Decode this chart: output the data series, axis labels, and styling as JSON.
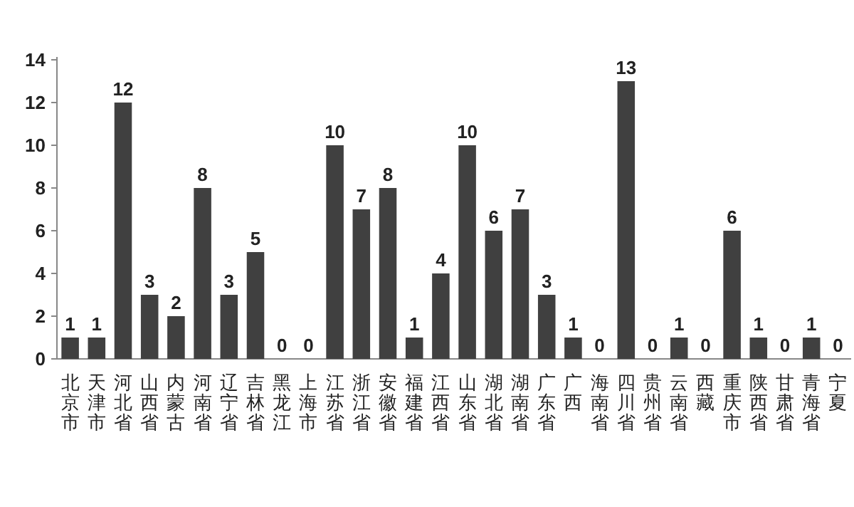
{
  "chart_data": {
    "type": "bar",
    "categories": [
      "北京市",
      "天津市",
      "河北省",
      "山西省",
      "内蒙古",
      "河南省",
      "辽宁省",
      "吉林省",
      "黑龙江",
      "上海市",
      "江苏省",
      "浙江省",
      "安徽省",
      "福建省",
      "江西省",
      "山东省",
      "湖北省",
      "湖南省",
      "广东省",
      "广西",
      "海南省",
      "四川省",
      "贵州省",
      "云南省",
      "西藏",
      "重庆市",
      "陕西省",
      "甘肃省",
      "青海省",
      "宁夏"
    ],
    "values": [
      1,
      1,
      12,
      3,
      2,
      8,
      3,
      5,
      0,
      0,
      10,
      7,
      8,
      1,
      4,
      10,
      6,
      7,
      3,
      1,
      0,
      13,
      0,
      1,
      0,
      6,
      1,
      0,
      1,
      0
    ],
    "color": "#404040",
    "ylim": [
      0,
      14
    ],
    "yticks": [
      0,
      2,
      4,
      6,
      8,
      10,
      12,
      14
    ],
    "data_labels": true,
    "grid": false
  }
}
